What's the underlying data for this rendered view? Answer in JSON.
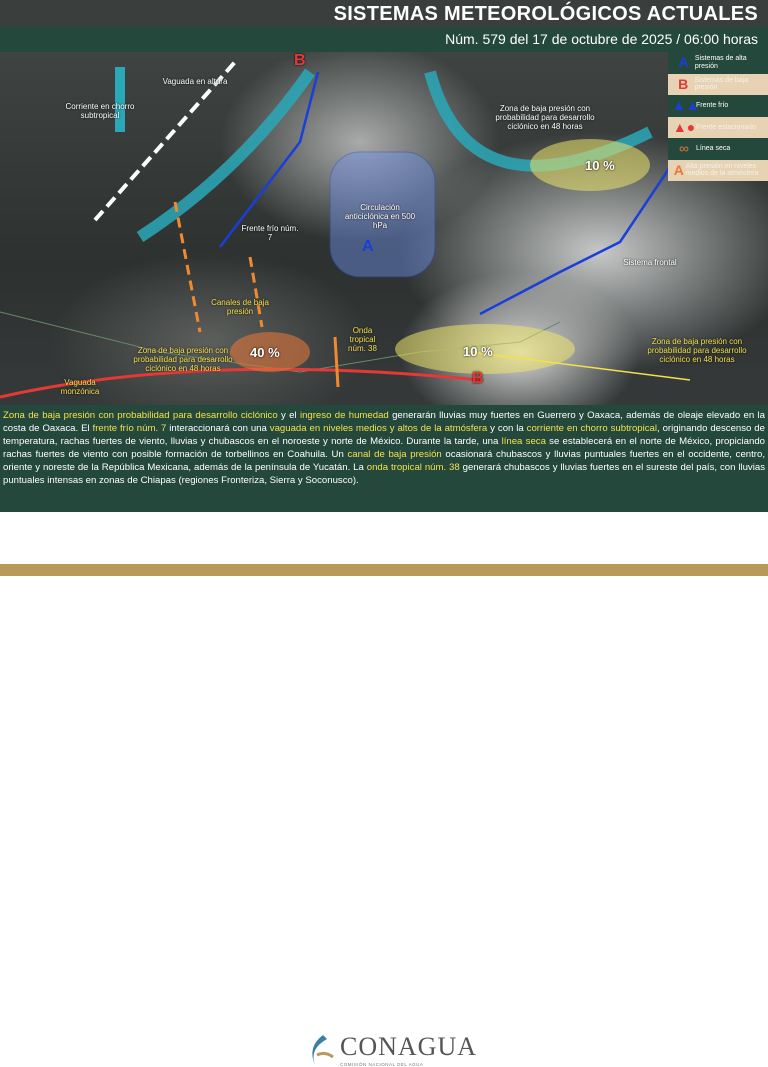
{
  "header": {
    "title": "SISTEMAS METEOROLÓGICOS ACTUALES",
    "date": "Núm. 579 del 17 de octubre de 2025 / 06:00 horas"
  },
  "legend": [
    {
      "symbol": "A",
      "label": "Sistemas de alta presión",
      "color": "#1a3fd8"
    },
    {
      "symbol": "B",
      "label": "Sistemas de baja presión",
      "color": "#e53935"
    },
    {
      "symbol": "▲▲",
      "label": "Frente frío",
      "color": "#1a3fd8"
    },
    {
      "symbol": "▲●",
      "label": "Frente estacionario",
      "color": "#e53935"
    },
    {
      "symbol": "∞",
      "label": "Línea seca",
      "color": "#b0703a"
    },
    {
      "symbol": "A",
      "label": "Alta presión en niveles medios de la atmósfera",
      "color": "#e57a3a"
    }
  ],
  "map": {
    "labels": {
      "vaguada_altura": "Vaguada en altura",
      "chorro": "Corriente en chorro subtropical",
      "frente_frio": "Frente frío núm. 7",
      "circulacion": "Circulación anticiclónica en 500 hPa",
      "zona_norte": "Zona de baja presión con probabilidad para desarrollo ciclónico en 48 horas",
      "sistema_frontal": "Sistema frontal",
      "canales": "Canales de baja presión",
      "onda": "Onda tropical núm. 38",
      "zona_pacifico": "Zona de baja presión con probabilidad para desarrollo ciclónico en 48 horas",
      "zona_este": "Zona de baja presión con probabilidad para desarrollo ciclónico en 48 horas",
      "vaguada_monzonica": "Vaguada monzónica"
    },
    "percent_north": "10 %",
    "percent_pacific": "40 %",
    "percent_caribbean": "10 %",
    "high": "A",
    "low": "B"
  },
  "bulletin": [
    {
      "t": "Zona de baja presión con probabilidad para desarrollo ciclónico",
      "h": true
    },
    {
      "t": " y el ",
      "h": false
    },
    {
      "t": "ingreso de humedad",
      "h": true
    },
    {
      "t": " generarán lluvias muy fuertes en Guerrero y Oaxaca, además de oleaje elevado en la costa de Oaxaca. El ",
      "h": false
    },
    {
      "t": "frente frío núm. 7",
      "h": true
    },
    {
      "t": " interaccionará con una ",
      "h": false
    },
    {
      "t": "vaguada en niveles medios y altos de la atmósfera",
      "h": true
    },
    {
      "t": " y con la ",
      "h": false
    },
    {
      "t": "corriente en chorro subtropical",
      "h": true
    },
    {
      "t": ", originando descenso de temperatura, rachas fuertes de viento, lluvias y chubascos en el noroeste y norte de México. Durante la tarde, una ",
      "h": false
    },
    {
      "t": "línea seca",
      "h": true
    },
    {
      "t": " se establecerá en el norte de México, propiciando rachas fuertes de viento con posible formación de torbellinos en Coahuila. Un ",
      "h": false
    },
    {
      "t": "canal de baja presión",
      "h": true
    },
    {
      "t": " ocasionará chubascos y lluvias puntuales fuertes en el occidente, centro, oriente y noreste de la República Mexicana, además de la península de Yucatán. La ",
      "h": false
    },
    {
      "t": "onda tropical núm. 38",
      "h": true
    },
    {
      "t": "  generará chubascos y lluvias fuertes en el sureste del país, con lluvias puntuales intensas en zonas de Chiapas (regiones Fronteriza, Sierra y Soconusco).",
      "h": false
    }
  ],
  "footer": {
    "logo_name": "CONAGUA",
    "logo_sub": "COMISIÓN NACIONAL DEL AGUA"
  }
}
